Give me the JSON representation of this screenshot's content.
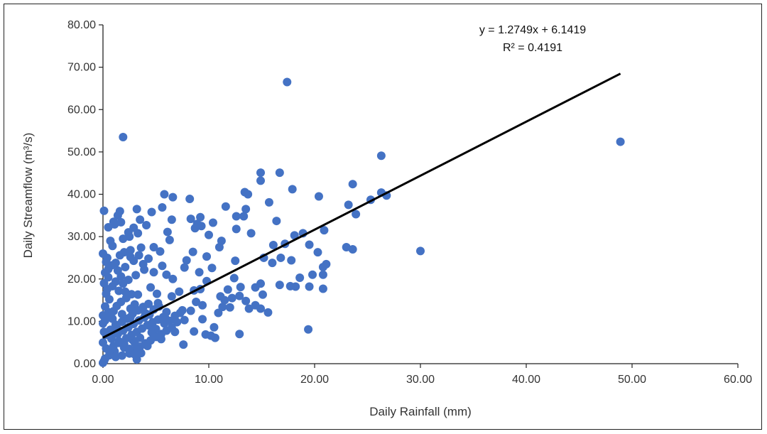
{
  "chart_data": {
    "type": "scatter",
    "xlabel": "Daily Rainfall (mm)",
    "ylabel": "Daily Streamflow (m³/s)",
    "xlim": [
      0,
      60
    ],
    "ylim": [
      0,
      80
    ],
    "x_ticks": [
      "0.00",
      "10.00",
      "20.00",
      "30.00",
      "40.00",
      "50.00",
      "60.00"
    ],
    "y_ticks": [
      "0.00",
      "10.00",
      "20.00",
      "30.00",
      "40.00",
      "50.00",
      "60.00",
      "70.00",
      "80.00"
    ],
    "grid": false,
    "legend": "none",
    "marker_color": "#4472C4",
    "trendline": {
      "slope": 1.2749,
      "intercept": 6.1419,
      "x_range": [
        0,
        48.9
      ],
      "equation": "y = 1.2749x + 6.1419",
      "r_squared": "R² = 0.4191",
      "color": "#000000"
    },
    "points": [
      [
        17.4,
        66.5
      ],
      [
        1.9,
        53.5
      ],
      [
        48.9,
        52.4
      ],
      [
        26.3,
        49.1
      ],
      [
        14.9,
        45.1
      ],
      [
        16.7,
        45.1
      ],
      [
        14.9,
        43.2
      ],
      [
        23.6,
        42.4
      ],
      [
        17.9,
        41.2
      ],
      [
        13.4,
        40.5
      ],
      [
        13.7,
        40.0
      ],
      [
        26.3,
        40.4
      ],
      [
        26.8,
        39.7
      ],
      [
        20.4,
        39.5
      ],
      [
        5.8,
        40.0
      ],
      [
        6.6,
        39.3
      ],
      [
        8.2,
        38.9
      ],
      [
        25.3,
        38.7
      ],
      [
        15.7,
        38.1
      ],
      [
        23.2,
        37.5
      ],
      [
        11.6,
        37.1
      ],
      [
        5.6,
        36.9
      ],
      [
        0.1,
        36.1
      ],
      [
        1.6,
        36.0
      ],
      [
        3.2,
        36.5
      ],
      [
        13.5,
        36.5
      ],
      [
        4.6,
        35.8
      ],
      [
        23.9,
        35.3
      ],
      [
        12.6,
        34.8
      ],
      [
        13.3,
        34.8
      ],
      [
        9.2,
        34.6
      ],
      [
        8.3,
        34.2
      ],
      [
        3.5,
        34.0
      ],
      [
        6.5,
        34.0
      ],
      [
        16.4,
        33.7
      ],
      [
        1.0,
        33.5
      ],
      [
        1.7,
        33.4
      ],
      [
        10.4,
        33.3
      ],
      [
        8.9,
        33.0
      ],
      [
        1.1,
        32.9
      ],
      [
        4.1,
        32.7
      ],
      [
        9.3,
        32.5
      ],
      [
        0.5,
        32.2
      ],
      [
        2.9,
        32.1
      ],
      [
        8.7,
        32.0
      ],
      [
        12.6,
        31.8
      ],
      [
        20.9,
        31.5
      ],
      [
        6.1,
        31.1
      ],
      [
        3.3,
        30.8
      ],
      [
        14.0,
        30.8
      ],
      [
        10.0,
        30.4
      ],
      [
        18.9,
        30.8
      ],
      [
        18.1,
        30.3
      ],
      [
        2.5,
        30.0
      ],
      [
        1.9,
        29.5
      ],
      [
        11.2,
        29.0
      ],
      [
        6.3,
        29.2
      ],
      [
        19.5,
        28.1
      ],
      [
        17.2,
        28.3
      ],
      [
        16.1,
        28.0
      ],
      [
        23.0,
        27.5
      ],
      [
        23.6,
        27.0
      ],
      [
        30.0,
        26.6
      ],
      [
        11.0,
        27.5
      ],
      [
        0.9,
        27.8
      ],
      [
        3.6,
        27.4
      ],
      [
        2.6,
        26.8
      ],
      [
        5.4,
        26.5
      ],
      [
        8.5,
        26.4
      ],
      [
        20.3,
        26.3
      ],
      [
        0.0,
        26.0
      ],
      [
        1.6,
        25.6
      ],
      [
        9.8,
        25.3
      ],
      [
        15.2,
        25.0
      ],
      [
        16.8,
        25.0
      ],
      [
        2.6,
        25.2
      ],
      [
        0.4,
        25.0
      ],
      [
        4.3,
        24.8
      ],
      [
        7.9,
        24.4
      ],
      [
        12.5,
        24.3
      ],
      [
        17.8,
        24.4
      ],
      [
        16.0,
        23.8
      ],
      [
        21.1,
        23.5
      ],
      [
        3.8,
        23.5
      ],
      [
        5.6,
        23.1
      ],
      [
        0.8,
        23.2
      ],
      [
        2.1,
        22.8
      ],
      [
        7.7,
        22.7
      ],
      [
        10.3,
        22.6
      ],
      [
        20.8,
        22.8
      ],
      [
        1.4,
        22.0
      ],
      [
        4.8,
        21.6
      ],
      [
        9.1,
        21.6
      ],
      [
        19.8,
        21.0
      ],
      [
        20.8,
        21.0
      ],
      [
        3.1,
        20.9
      ],
      [
        0.5,
        20.4
      ],
      [
        12.4,
        20.2
      ],
      [
        18.6,
        20.3
      ],
      [
        6.6,
        20.0
      ],
      [
        9.8,
        19.5
      ],
      [
        1.2,
        19.4
      ],
      [
        14.9,
        18.9
      ],
      [
        16.7,
        18.6
      ],
      [
        17.7,
        18.3
      ],
      [
        18.2,
        18.2
      ],
      [
        20.8,
        17.7
      ],
      [
        19.5,
        18.2
      ],
      [
        13.0,
        18.1
      ],
      [
        14.4,
        18.0
      ],
      [
        11.8,
        17.5
      ],
      [
        9.2,
        17.6
      ],
      [
        8.6,
        17.3
      ],
      [
        4.5,
        18.0
      ],
      [
        2.1,
        17.0
      ],
      [
        0.3,
        16.5
      ],
      [
        3.3,
        16.3
      ],
      [
        6.5,
        15.9
      ],
      [
        11.1,
        15.9
      ],
      [
        12.9,
        16.0
      ],
      [
        15.1,
        16.3
      ],
      [
        12.2,
        15.5
      ],
      [
        11.5,
        15.0
      ],
      [
        13.5,
        14.8
      ],
      [
        8.8,
        14.6
      ],
      [
        5.2,
        14.3
      ],
      [
        3.0,
        14.0
      ],
      [
        9.4,
        13.8
      ],
      [
        11.3,
        13.4
      ],
      [
        12.0,
        13.3
      ],
      [
        14.4,
        13.8
      ],
      [
        13.8,
        13.0
      ],
      [
        14.9,
        13.0
      ],
      [
        15.6,
        12.1
      ],
      [
        10.9,
        12.0
      ],
      [
        7.5,
        12.6
      ],
      [
        6.0,
        12.2
      ],
      [
        8.3,
        12.5
      ],
      [
        4.0,
        11.9
      ],
      [
        1.8,
        11.7
      ],
      [
        0.0,
        11.4
      ],
      [
        2.6,
        11.0
      ],
      [
        5.9,
        10.7
      ],
      [
        9.4,
        10.5
      ],
      [
        7.7,
        10.3
      ],
      [
        10.5,
        8.6
      ],
      [
        8.6,
        7.6
      ],
      [
        9.7,
        6.9
      ],
      [
        10.2,
        6.6
      ],
      [
        10.6,
        6.1
      ],
      [
        12.9,
        7.0
      ],
      [
        19.4,
        8.1
      ],
      [
        7.6,
        4.5
      ],
      [
        3.2,
        1.0
      ],
      [
        1.4,
        35.0
      ],
      [
        2.4,
        31.0
      ],
      [
        0.7,
        29.0
      ],
      [
        4.8,
        27.5
      ],
      [
        3.9,
        22.2
      ],
      [
        6.0,
        21.0
      ],
      [
        7.2,
        17.0
      ],
      [
        5.1,
        16.5
      ],
      [
        2.6,
        13.0
      ],
      [
        4.4,
        9.0
      ],
      [
        6.8,
        7.5
      ],
      [
        7.0,
        9.8
      ],
      [
        5.5,
        5.8
      ],
      [
        4.2,
        4.2
      ],
      [
        3.6,
        2.5
      ],
      [
        2.8,
        5.6
      ],
      [
        0.3,
        24.0
      ],
      [
        0.2,
        21.5
      ],
      [
        0.1,
        19.0
      ],
      [
        0.4,
        17.6
      ],
      [
        0.6,
        15.2
      ],
      [
        0.2,
        13.5
      ],
      [
        0.5,
        12.2
      ],
      [
        0.9,
        10.6
      ],
      [
        1.2,
        9.2
      ],
      [
        0.7,
        8.0
      ],
      [
        0.3,
        6.8
      ],
      [
        0.8,
        5.9
      ],
      [
        1.5,
        4.9
      ],
      [
        2.0,
        3.8
      ],
      [
        1.1,
        2.9
      ],
      [
        0.6,
        2.0
      ],
      [
        0.2,
        1.2
      ],
      [
        0.1,
        0.6
      ],
      [
        0.0,
        0.2
      ],
      [
        0.3,
        3.6
      ],
      [
        0.0,
        5.0
      ],
      [
        0.1,
        7.5
      ],
      [
        0.0,
        9.5
      ],
      [
        0.2,
        10.2
      ],
      [
        0.6,
        11.0
      ],
      [
        1.0,
        12.4
      ],
      [
        1.3,
        13.6
      ],
      [
        1.7,
        14.6
      ],
      [
        2.2,
        15.5
      ],
      [
        2.7,
        16.4
      ],
      [
        1.5,
        17.2
      ],
      [
        0.9,
        18.3
      ],
      [
        1.9,
        18.9
      ],
      [
        2.4,
        19.8
      ],
      [
        1.7,
        20.6
      ],
      [
        0.5,
        22.3
      ],
      [
        1.2,
        23.8
      ],
      [
        2.9,
        24.3
      ],
      [
        3.4,
        25.6
      ],
      [
        2.0,
        26.3
      ],
      [
        0.6,
        3.0
      ],
      [
        1.2,
        1.6
      ],
      [
        1.8,
        1.9
      ],
      [
        2.5,
        2.4
      ],
      [
        3.0,
        3.2
      ],
      [
        3.5,
        4.0
      ],
      [
        4.0,
        4.8
      ],
      [
        4.5,
        5.5
      ],
      [
        5.0,
        6.3
      ],
      [
        5.5,
        7.0
      ],
      [
        6.0,
        7.8
      ],
      [
        6.5,
        8.5
      ],
      [
        2.2,
        6.0
      ],
      [
        2.7,
        6.8
      ],
      [
        3.2,
        7.5
      ],
      [
        3.7,
        8.3
      ],
      [
        4.2,
        9.1
      ],
      [
        4.7,
        9.8
      ],
      [
        5.2,
        10.4
      ],
      [
        5.7,
        11.0
      ],
      [
        1.4,
        7.0
      ],
      [
        1.9,
        7.8
      ],
      [
        2.4,
        8.6
      ],
      [
        2.9,
        9.4
      ],
      [
        3.4,
        10.2
      ],
      [
        3.9,
        10.9
      ],
      [
        4.4,
        11.6
      ],
      [
        1.0,
        4.2
      ],
      [
        1.5,
        5.3
      ],
      [
        2.0,
        4.6
      ],
      [
        2.5,
        3.5
      ],
      [
        3.0,
        2.2
      ],
      [
        0.8,
        6.5
      ],
      [
        1.3,
        8.5
      ],
      [
        1.8,
        9.9
      ],
      [
        2.3,
        10.6
      ],
      [
        2.8,
        11.8
      ],
      [
        3.3,
        12.6
      ],
      [
        3.8,
        13.4
      ],
      [
        4.3,
        14.1
      ],
      [
        4.8,
        12.8
      ],
      [
        5.3,
        13.5
      ],
      [
        5.8,
        9.5
      ],
      [
        6.3,
        10.1
      ],
      [
        6.8,
        11.3
      ],
      [
        7.3,
        12.0
      ],
      [
        5.0,
        8.2
      ],
      [
        4.6,
        7.4
      ],
      [
        3.5,
        6.1
      ],
      [
        3.0,
        5.0
      ]
    ]
  }
}
